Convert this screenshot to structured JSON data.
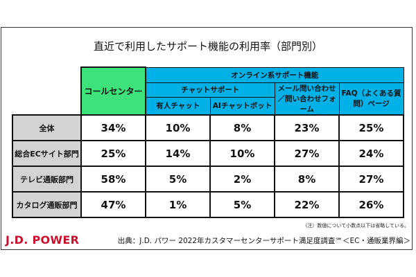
{
  "title": "直近で利用したサポート機能の利用率（部門別）",
  "header": {
    "call_center": "コールセンター",
    "online": "オンライン系サポート機能",
    "chat": "チャットサポート",
    "human_chat": "有人チャット",
    "ai_chat": "AIチャットボット",
    "mail": "メール問い合わせ／問い合わせフォーム",
    "faq": "FAQ（よくある質問）ページ"
  },
  "rows": [
    {
      "label": "全体",
      "values": [
        "34%",
        "10%",
        "8%",
        "23%",
        "25%"
      ]
    },
    {
      "label": "総合ECサイト部門",
      "values": [
        "25%",
        "14%",
        "10%",
        "27%",
        "24%"
      ]
    },
    {
      "label": "テレビ通販部門",
      "values": [
        "58%",
        "5%",
        "2%",
        "8%",
        "27%"
      ]
    },
    {
      "label": "カタログ通販部門",
      "values": [
        "47%",
        "1%",
        "5%",
        "22%",
        "26%"
      ]
    }
  ],
  "note": "（注）数値について小数点以下は省略している。",
  "logo": "J.D. POWER",
  "source": "出典：J.D. パワー 2022年カスタマーセンターサポート満足度調査℠＜EC・通販業界編＞"
}
